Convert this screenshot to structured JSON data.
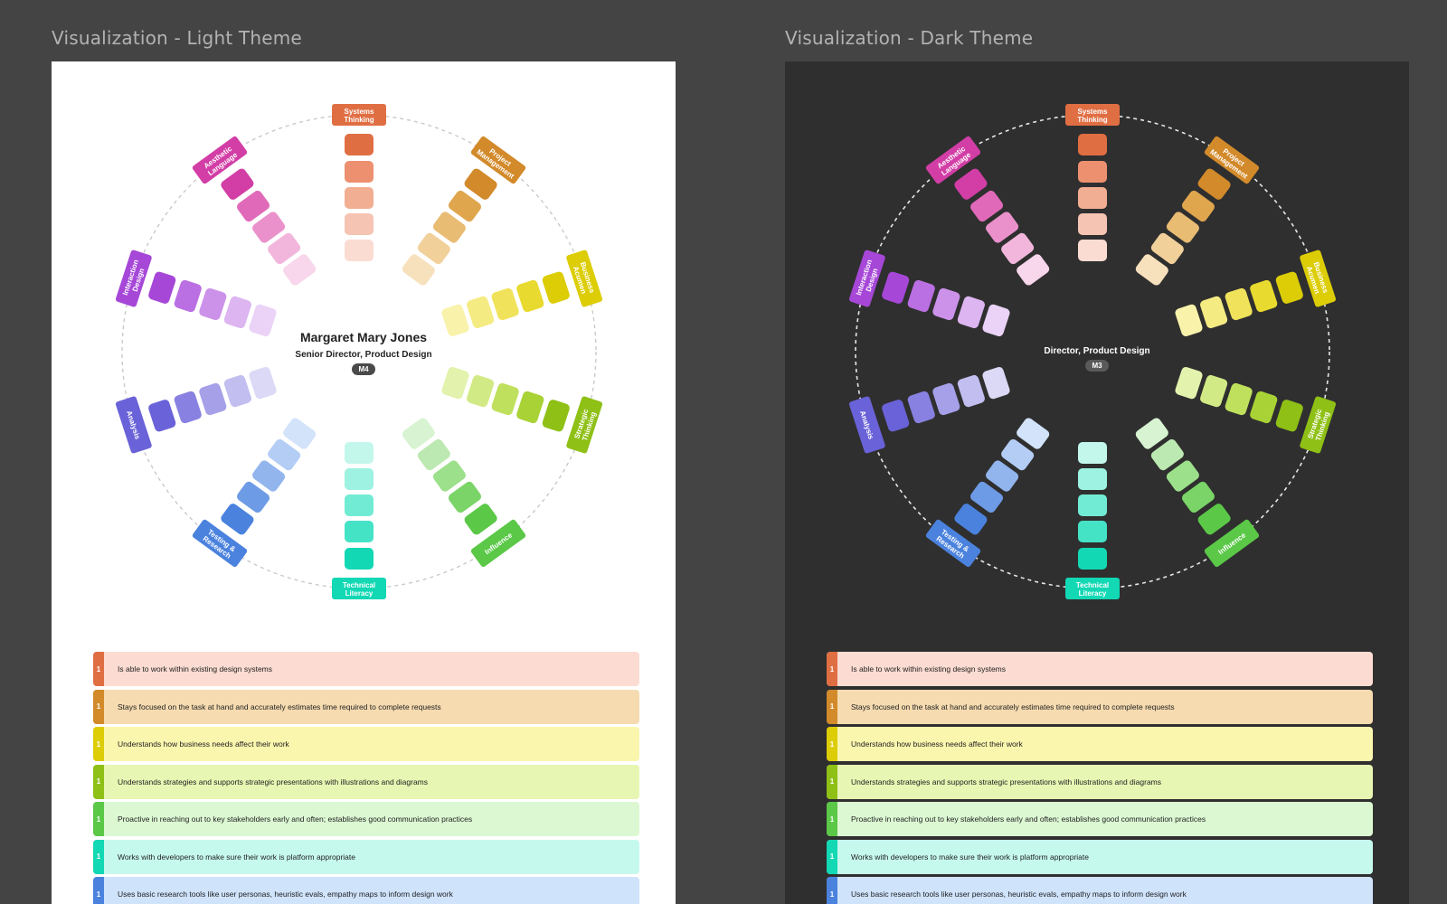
{
  "frames": {
    "light": {
      "title": "Visualization - Light Theme"
    },
    "dark": {
      "title": "Visualization - Dark Theme"
    }
  },
  "light": {
    "name": "Margaret Mary Jones",
    "role": "Senior Director, Product Design",
    "level": "M4"
  },
  "dark": {
    "name": "",
    "role": "Director, Product Design",
    "level": "M3"
  },
  "skills": [
    {
      "key": "systems-thinking",
      "label": "Systems\nThinking",
      "color": "#e06e43",
      "segments": [
        "#e06e43",
        "#ec9070",
        "#f2ae93",
        "#f6c4b3",
        "#fbdcd2"
      ]
    },
    {
      "key": "project-management",
      "label": "Project\nManagement",
      "color": "#d28a2a",
      "segments": [
        "#d28a2a",
        "#e0a64e",
        "#e9bc74",
        "#f1d09a",
        "#f7e1bd"
      ]
    },
    {
      "key": "business-acumen",
      "label": "Business\nAcumen",
      "color": "#dccd06",
      "segments": [
        "#dccd06",
        "#e8da2f",
        "#f0e35b",
        "#f5eb83",
        "#f9f2ab"
      ]
    },
    {
      "key": "strategic-thinking",
      "label": "Strategic\nThinking",
      "color": "#8fc016",
      "segments": [
        "#8fc016",
        "#a8d236",
        "#bfe05c",
        "#d2ea85",
        "#e3f2ad"
      ]
    },
    {
      "key": "influence",
      "label": "Influence",
      "color": "#5bc848",
      "segments": [
        "#5bc848",
        "#7ad468",
        "#9ce08c",
        "#bce9b1",
        "#d8f3d1"
      ]
    },
    {
      "key": "technical-literacy",
      "label": "Technical\nLiteracy",
      "color": "#12d8b4",
      "segments": [
        "#12d8b4",
        "#45e3c6",
        "#72ebd4",
        "#9df2e1",
        "#c3f7ec"
      ]
    },
    {
      "key": "testing-research",
      "label": "Testing &\nResearch",
      "color": "#4a82de",
      "segments": [
        "#4a82de",
        "#6e9be6",
        "#92b5ee",
        "#b3cdf5",
        "#d2e3fa"
      ]
    },
    {
      "key": "analysis",
      "label": "Analysis",
      "color": "#6a62d8",
      "segments": [
        "#6a62d8",
        "#8881e1",
        "#a5a0e8",
        "#c2beef",
        "#dbd9f5"
      ]
    },
    {
      "key": "interaction-design",
      "label": "Interaction\nDesign",
      "color": "#a647d8",
      "segments": [
        "#a647d8",
        "#ba6fe2",
        "#cc92ea",
        "#dcb5f1",
        "#ead3f7"
      ]
    },
    {
      "key": "aesthetic-language",
      "label": "Aesthetic\nLanguage",
      "color": "#d23ea6",
      "segments": [
        "#d23ea6",
        "#e06ab9",
        "#ea91cc",
        "#f2b6dc",
        "#f8d6eb"
      ]
    }
  ],
  "descriptions": [
    {
      "level": "1",
      "text": "Is able to work within existing design systems",
      "bar": "#e06e43",
      "bg": "#fcdcd2"
    },
    {
      "level": "1",
      "text": "Stays focused on the task at hand and accurately estimates time required to complete requests",
      "bar": "#d28a2a",
      "bg": "#f6dbb0"
    },
    {
      "level": "1",
      "text": "Understands how business needs affect their work",
      "bar": "#dccd06",
      "bg": "#fbf6ae"
    },
    {
      "level": "1",
      "text": "Understands strategies and supports strategic presentations with illustrations and diagrams",
      "bar": "#8fc016",
      "bg": "#e8f6b3"
    },
    {
      "level": "1",
      "text": "Proactive in reaching out to key stakeholders early and often; establishes good communication practices",
      "bar": "#5bc848",
      "bg": "#dcf8d3"
    },
    {
      "level": "1",
      "text": "Works with developers to make sure their work is platform appropriate",
      "bar": "#12d8b4",
      "bg": "#c6f9ee"
    },
    {
      "level": "1",
      "text": "Uses basic research tools like user personas, heuristic evals, empathy maps to inform design work",
      "bar": "#4a82de",
      "bg": "#cfe3fb"
    }
  ],
  "theme": {
    "light_bg": "#ffffff",
    "dark_bg": "#2f2f2f",
    "canvas_bg": "#444444"
  }
}
